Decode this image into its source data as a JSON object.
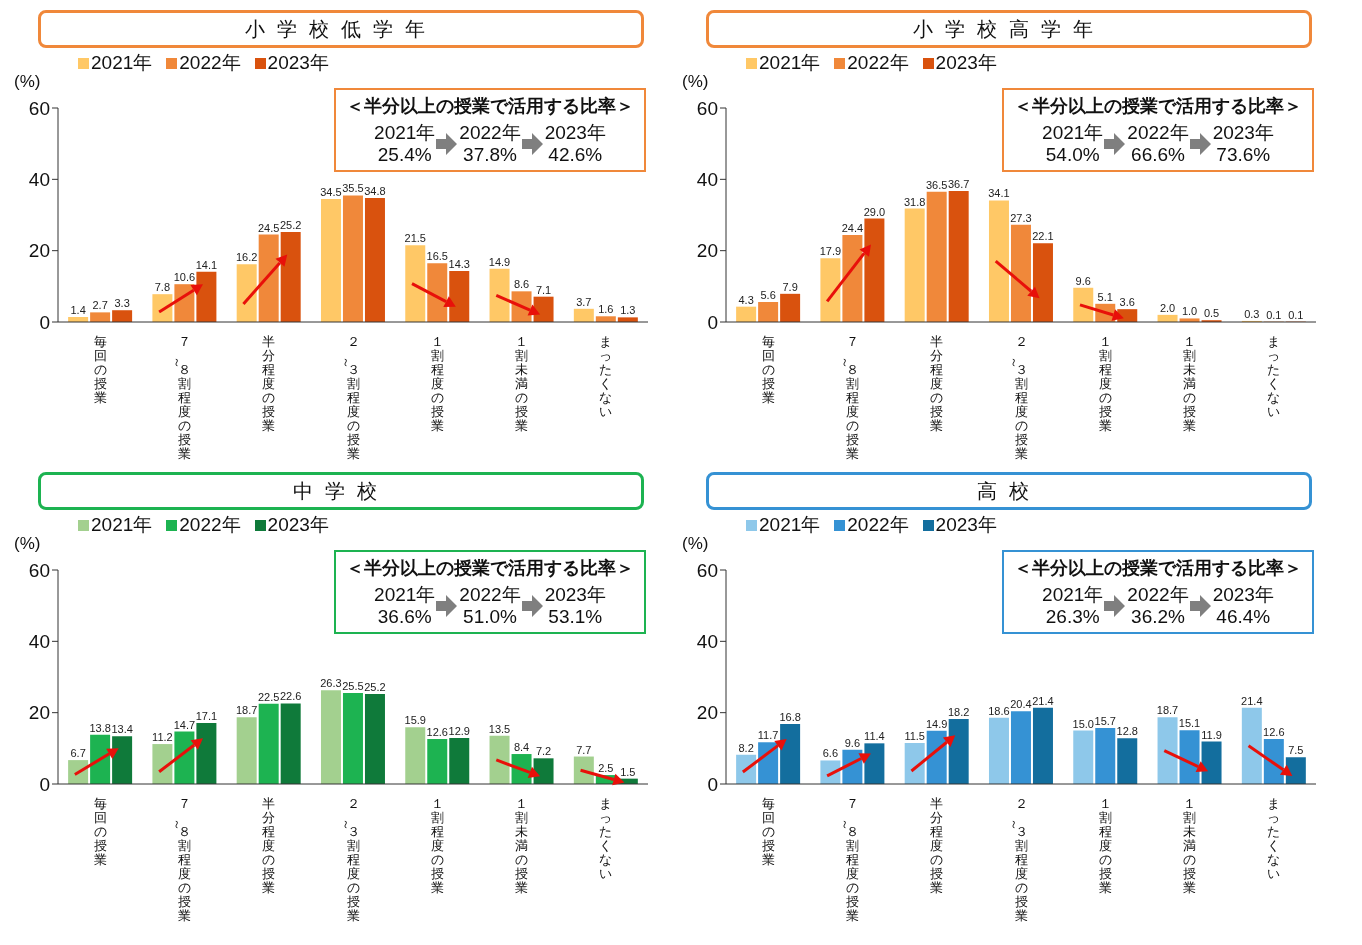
{
  "chart_data": [
    {
      "type": "bar",
      "title": "小学校低学年",
      "ylabel": "(%)",
      "categories": [
        "毎回の授業",
        "７～８割程度の授業",
        "半分程度の授業",
        "２～３割程度の授業",
        "１割程度の授業",
        "１割未満の授業",
        "まったくない"
      ],
      "series": [
        {
          "name": "2021年",
          "color": "#ffc866",
          "values": [
            1.4,
            7.8,
            16.2,
            34.5,
            21.5,
            14.9,
            3.7
          ],
          "value_labels": [
            "1.4",
            "7.8",
            "16.2",
            "34.5",
            "21.5",
            "14.9",
            "3.7"
          ]
        },
        {
          "name": "2022年",
          "color": "#f0883a",
          "values": [
            2.7,
            10.6,
            24.5,
            35.5,
            16.5,
            8.6,
            1.6
          ],
          "value_labels": [
            "2.7",
            "10.6",
            "24.5",
            "35.5",
            "16.5",
            "8.6",
            "1.6"
          ]
        },
        {
          "name": "2023年",
          "color": "#d9520e",
          "values": [
            3.3,
            14.1,
            25.2,
            34.8,
            14.3,
            7.1,
            1.3
          ],
          "value_labels": [
            "3.3",
            "14.1",
            "25.2",
            "34.8",
            "14.3",
            "7.1",
            "1.3"
          ]
        }
      ],
      "ylim": [
        0,
        60
      ],
      "yticks": [
        0,
        20,
        40,
        60
      ],
      "legend": "top left",
      "annotations": [
        "＜半分以上の授業で活用する比率＞",
        "2021年",
        "25.4%",
        "2022年",
        "37.8%",
        "2023年",
        "42.6%"
      ]
    },
    {
      "type": "bar",
      "title": "小学校高学年",
      "ylabel": "(%)",
      "categories": [
        "毎回の授業",
        "７～８割程度の授業",
        "半分程度の授業",
        "２～３割程度の授業",
        "１割程度の授業",
        "１割未満の授業",
        "まったくない"
      ],
      "series": [
        {
          "name": "2021年",
          "color": "#ffc866",
          "values": [
            4.3,
            17.9,
            31.8,
            34.1,
            9.6,
            2.0,
            0.3
          ],
          "value_labels": [
            "4.3",
            "17.9",
            "31.8",
            "34.1",
            "9.6",
            "2.0",
            "0.3"
          ]
        },
        {
          "name": "2022年",
          "color": "#f0883a",
          "values": [
            5.6,
            24.4,
            36.5,
            27.3,
            5.1,
            1.0,
            0.1
          ],
          "value_labels": [
            "5.6",
            "24.4",
            "36.5",
            "27.3",
            "5.1",
            "1.0",
            "0.1"
          ]
        },
        {
          "name": "2023年",
          "color": "#d9520e",
          "values": [
            7.9,
            29.0,
            36.7,
            22.1,
            3.6,
            0.5,
            0.1
          ],
          "value_labels": [
            "7.9",
            "29.0",
            "36.7",
            "22.1",
            "3.6",
            "0.5",
            "0.1"
          ]
        }
      ],
      "ylim": [
        0,
        60
      ],
      "yticks": [
        0,
        20,
        40,
        60
      ],
      "legend": "top left",
      "annotations": [
        "＜半分以上の授業で活用する比率＞",
        "2021年",
        "54.0%",
        "2022年",
        "66.6%",
        "2023年",
        "73.6%"
      ]
    },
    {
      "type": "bar",
      "title": "中学校",
      "ylabel": "(%)",
      "categories": [
        "毎回の授業",
        "７～８割程度の授業",
        "半分程度の授業",
        "２～３割程度の授業",
        "１割程度の授業",
        "１割未満の授業",
        "まったくない"
      ],
      "series": [
        {
          "name": "2021年",
          "color": "#a3d08f",
          "values": [
            6.7,
            11.2,
            18.7,
            26.3,
            15.9,
            13.5,
            7.7
          ],
          "value_labels": [
            "6.7",
            "11.2",
            "18.7",
            "26.3",
            "15.9",
            "13.5",
            "7.7"
          ]
        },
        {
          "name": "2022年",
          "color": "#1db351",
          "values": [
            13.8,
            14.7,
            22.5,
            25.5,
            12.6,
            8.4,
            2.5
          ],
          "value_labels": [
            "13.8",
            "14.7",
            "22.5",
            "25.5",
            "12.6",
            "8.4",
            "2.5"
          ]
        },
        {
          "name": "2023年",
          "color": "#0f7a3a",
          "values": [
            13.4,
            17.1,
            22.6,
            25.2,
            12.9,
            7.2,
            1.5
          ],
          "value_labels": [
            "13.4",
            "17.1",
            "22.6",
            "25.2",
            "12.9",
            "7.2",
            "1.5"
          ]
        }
      ],
      "ylim": [
        0,
        60
      ],
      "yticks": [
        0,
        20,
        40,
        60
      ],
      "legend": "top left",
      "annotations": [
        "＜半分以上の授業で活用する比率＞",
        "2021年",
        "36.6%",
        "2022年",
        "51.0%",
        "2023年",
        "53.1%"
      ]
    },
    {
      "type": "bar",
      "title": "高校",
      "ylabel": "(%)",
      "categories": [
        "毎回の授業",
        "７～８割程度の授業",
        "半分程度の授業",
        "２～３割程度の授業",
        "１割程度の授業",
        "１割未満の授業",
        "まったくない"
      ],
      "series": [
        {
          "name": "2021年",
          "color": "#8ec8ea",
          "values": [
            8.2,
            6.6,
            11.5,
            18.6,
            15.0,
            18.7,
            21.4
          ],
          "value_labels": [
            "8.2",
            "6.6",
            "11.5",
            "18.6",
            "15.0",
            "18.7",
            "21.4"
          ]
        },
        {
          "name": "2022年",
          "color": "#3592d4",
          "values": [
            11.7,
            9.6,
            14.9,
            20.4,
            15.7,
            15.1,
            12.6
          ],
          "value_labels": [
            "11.7",
            "9.6",
            "14.9",
            "20.4",
            "15.7",
            "15.1",
            "12.6"
          ]
        },
        {
          "name": "2023年",
          "color": "#136e9e",
          "values": [
            16.8,
            11.4,
            18.2,
            21.4,
            12.8,
            11.9,
            7.5
          ],
          "value_labels": [
            "16.8",
            "11.4",
            "18.2",
            "21.4",
            "12.8",
            "11.9",
            "7.5"
          ]
        }
      ],
      "ylim": [
        0,
        60
      ],
      "yticks": [
        0,
        20,
        40,
        60
      ],
      "legend": "top left",
      "annotations": [
        "＜半分以上の授業で活用する比率＞",
        "2021年",
        "26.3%",
        "2022年",
        "36.2%",
        "2023年",
        "46.4%"
      ]
    }
  ]
}
